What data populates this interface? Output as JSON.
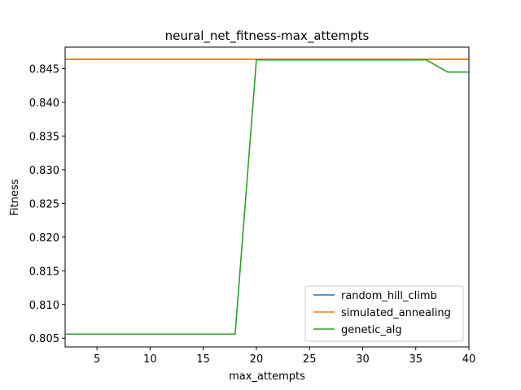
{
  "chart_data": {
    "type": "line",
    "title": "neural_net_fitness-max_attempts",
    "xlabel": "max_attempts",
    "ylabel": "Fitness",
    "xlim": [
      2,
      40
    ],
    "ylim": [
      0.8037,
      0.8482
    ],
    "xticks": [
      5,
      10,
      15,
      20,
      25,
      30,
      35,
      40
    ],
    "yticks": [
      0.805,
      0.81,
      0.815,
      0.82,
      0.825,
      0.83,
      0.835,
      0.84,
      0.845
    ],
    "ytick_labels": [
      "0.805",
      "0.810",
      "0.815",
      "0.820",
      "0.825",
      "0.830",
      "0.835",
      "0.840",
      "0.845"
    ],
    "grid": false,
    "legend": "lower-right",
    "x": [
      2,
      4,
      6,
      8,
      10,
      12,
      14,
      16,
      18,
      20,
      22,
      24,
      26,
      28,
      30,
      32,
      34,
      36,
      38,
      40
    ],
    "series": [
      {
        "name": "random_hill_climb",
        "color": "#1f77b4",
        "values": [
          0.8464,
          0.8464,
          0.8464,
          0.8464,
          0.8464,
          0.8464,
          0.8464,
          0.8464,
          0.8464,
          0.8464,
          0.8464,
          0.8464,
          0.8464,
          0.8464,
          0.8464,
          0.8464,
          0.8464,
          0.8464,
          0.8464,
          0.8464
        ]
      },
      {
        "name": "simulated_annealing",
        "color": "#ff7f0e",
        "values": [
          0.8464,
          0.8464,
          0.8464,
          0.8464,
          0.8464,
          0.8464,
          0.8464,
          0.8464,
          0.8464,
          0.8464,
          0.8464,
          0.8464,
          0.8464,
          0.8464,
          0.8464,
          0.8464,
          0.8464,
          0.8464,
          0.8464,
          0.8464
        ]
      },
      {
        "name": "genetic_alg",
        "color": "#2ca02c",
        "values": [
          0.8056,
          0.8056,
          0.8056,
          0.8056,
          0.8056,
          0.8056,
          0.8056,
          0.8056,
          0.8056,
          0.8463,
          0.8463,
          0.8463,
          0.8463,
          0.8463,
          0.8463,
          0.8463,
          0.8463,
          0.8463,
          0.8445,
          0.8445
        ]
      }
    ]
  }
}
